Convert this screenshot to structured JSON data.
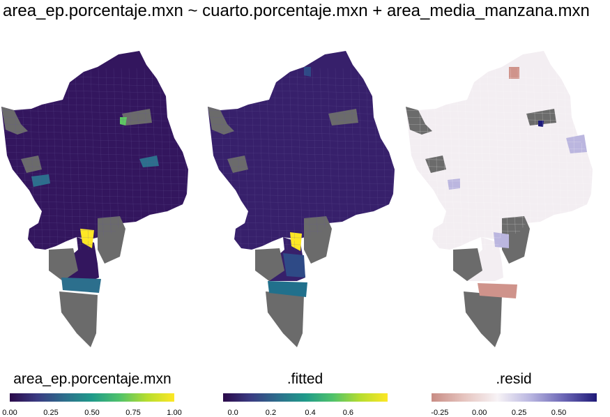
{
  "title": "area_ep.porcentaje.mxn ~ cuarto.porcentaje.mxn + area_media_manzana.mxn",
  "maps": [
    {
      "legend_title": "area_ep.porcentaje.mxn",
      "palette": [
        "#2b0a4a",
        "#3a3b82",
        "#2d6e8c",
        "#1f9a8a",
        "#4fc26b",
        "#b6dd2f",
        "#fde725"
      ],
      "ticks": [
        "0.00",
        "0.25",
        "0.50",
        "0.75",
        "1.00"
      ],
      "base_color": "#33165e",
      "highlights": [
        {
          "name": "yellow-block",
          "color": "#fde725"
        },
        {
          "name": "green-block",
          "color": "#5ec962"
        },
        {
          "name": "teal-blocks",
          "color": "#2c6f8d"
        }
      ]
    },
    {
      "legend_title": ".fitted",
      "palette": [
        "#2b0a4a",
        "#3a3b82",
        "#2d6e8c",
        "#1f9a8a",
        "#4fc26b",
        "#b6dd2f",
        "#fde725"
      ],
      "ticks": [
        "0.0",
        "0.2",
        "0.4",
        "0.6"
      ],
      "base_color": "#37206b",
      "highlights": [
        {
          "name": "yellow-block",
          "color": "#fde725"
        },
        {
          "name": "teal-band",
          "color": "#21708c"
        },
        {
          "name": "blue-blocks",
          "color": "#2e4a86"
        }
      ]
    },
    {
      "legend_title": ".resid",
      "palette": [
        "#c88c84",
        "#e6c5c0",
        "#f7f3f6",
        "#b8b5e0",
        "#6b66b5",
        "#1f1a78"
      ],
      "ticks": [
        "-0.25",
        "0.00",
        "0.25",
        "0.50"
      ],
      "base_color": "#f3eef2",
      "highlights": [
        {
          "name": "pink-band",
          "color": "#cf938b"
        },
        {
          "name": "navy-block",
          "color": "#1d1a7a"
        },
        {
          "name": "lavender-blocks",
          "color": "#bbb6df"
        }
      ]
    }
  ],
  "na_color": "#6b6b6b"
}
